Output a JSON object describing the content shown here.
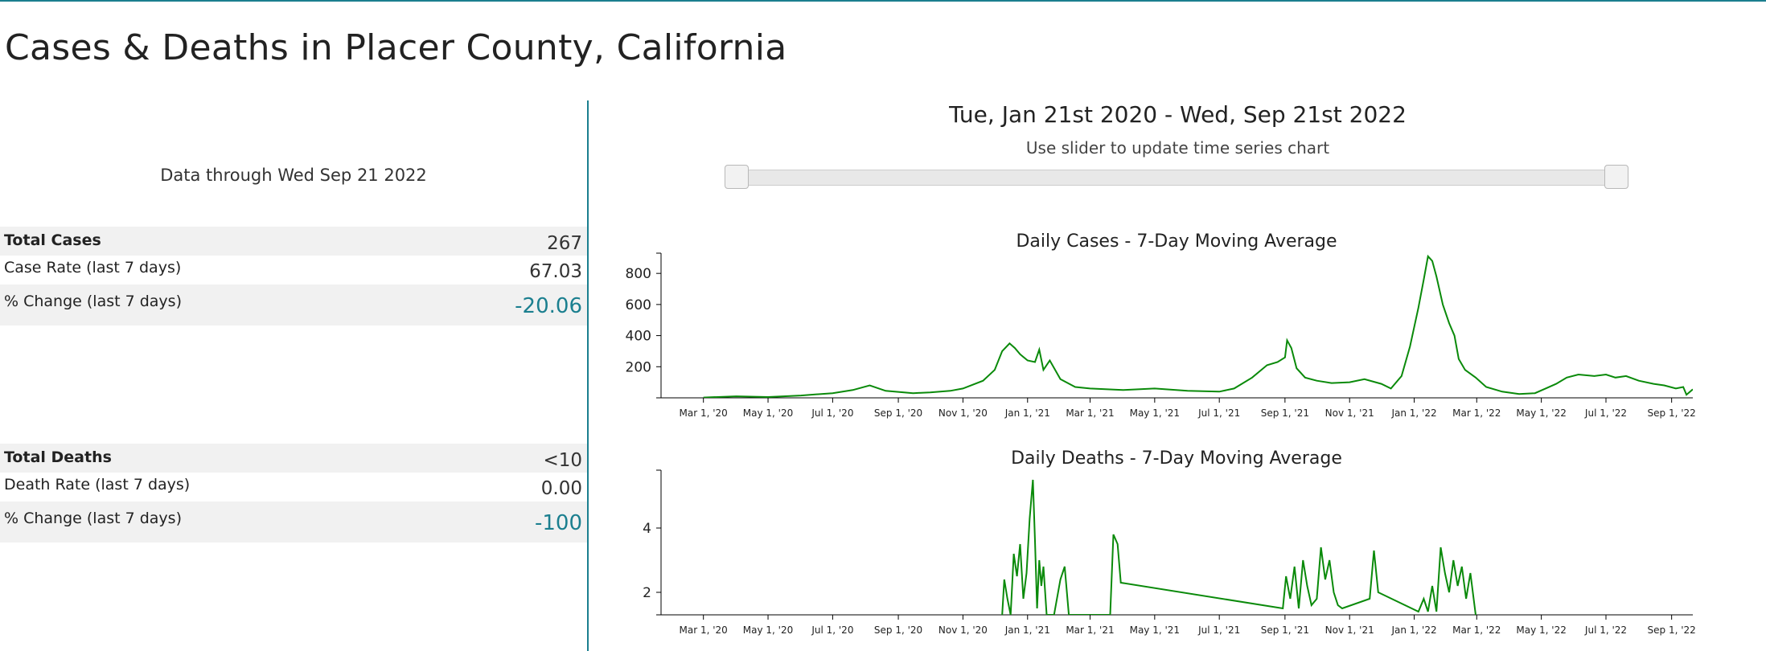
{
  "page": {
    "title": "Cases & Deaths in Placer County, California"
  },
  "summary": {
    "data_through": "Data through Wed Sep 21 2022",
    "cases": {
      "total_label": "Total Cases",
      "total_value": "267",
      "rate_label": "Case Rate (last 7 days)",
      "rate_value": "67.03",
      "change_label": "% Change (last 7 days)",
      "change_value": "-20.06"
    },
    "deaths": {
      "total_label": "Total Deaths",
      "total_value": "<10",
      "rate_label": "Death Rate (last 7 days)",
      "rate_value": "0.00",
      "change_label": "% Change (last 7 days)",
      "change_value": "-100"
    }
  },
  "range": {
    "title": "Tue, Jan 21st 2020 - Wed, Sep 21st 2022",
    "hint": "Use slider to update time series chart",
    "start": "2020-01-21",
    "end": "2022-09-21"
  },
  "colors": {
    "accent": "#1b7f8f",
    "series": "#0a8a0a",
    "shade": "#f1f1f1"
  },
  "chart_data": [
    {
      "type": "line",
      "title": "Daily Cases - 7-Day Moving Average",
      "xlabel": "",
      "ylabel": "",
      "x_ticks": [
        "Mar 1, '20",
        "May 1, '20",
        "Jul 1, '20",
        "Sep 1, '20",
        "Nov 1, '20",
        "Jan 1, '21",
        "Mar 1, '21",
        "May 1, '21",
        "Jul 1, '21",
        "Sep 1, '21",
        "Nov 1, '21",
        "Jan 1, '22",
        "Mar 1, '22",
        "May 1, '22",
        "Jul 1, '22",
        "Sep 1, '22"
      ],
      "y_ticks": [
        "200",
        "400",
        "600",
        "800"
      ],
      "ylim": [
        0,
        930
      ],
      "xlim": [
        "2020-01-21",
        "2022-09-21"
      ],
      "series": [
        {
          "points": [
            [
              "2020-03-01",
              2
            ],
            [
              "2020-04-01",
              10
            ],
            [
              "2020-05-01",
              5
            ],
            [
              "2020-06-01",
              15
            ],
            [
              "2020-07-01",
              30
            ],
            [
              "2020-07-20",
              50
            ],
            [
              "2020-08-05",
              80
            ],
            [
              "2020-08-20",
              45
            ],
            [
              "2020-09-15",
              30
            ],
            [
              "2020-10-01",
              35
            ],
            [
              "2020-10-20",
              45
            ],
            [
              "2020-11-01",
              60
            ],
            [
              "2020-11-20",
              110
            ],
            [
              "2020-12-01",
              180
            ],
            [
              "2020-12-08",
              300
            ],
            [
              "2020-12-15",
              350
            ],
            [
              "2020-12-20",
              320
            ],
            [
              "2020-12-25",
              280
            ],
            [
              "2021-01-01",
              240
            ],
            [
              "2021-01-08",
              230
            ],
            [
              "2021-01-12",
              310
            ],
            [
              "2021-01-16",
              180
            ],
            [
              "2021-01-22",
              240
            ],
            [
              "2021-02-01",
              120
            ],
            [
              "2021-02-15",
              70
            ],
            [
              "2021-03-01",
              60
            ],
            [
              "2021-04-01",
              50
            ],
            [
              "2021-05-01",
              60
            ],
            [
              "2021-06-01",
              45
            ],
            [
              "2021-07-01",
              40
            ],
            [
              "2021-07-15",
              60
            ],
            [
              "2021-08-01",
              130
            ],
            [
              "2021-08-15",
              210
            ],
            [
              "2021-08-25",
              230
            ],
            [
              "2021-09-01",
              260
            ],
            [
              "2021-09-03",
              370
            ],
            [
              "2021-09-07",
              320
            ],
            [
              "2021-09-12",
              190
            ],
            [
              "2021-09-20",
              130
            ],
            [
              "2021-10-01",
              110
            ],
            [
              "2021-10-15",
              95
            ],
            [
              "2021-11-01",
              100
            ],
            [
              "2021-11-15",
              120
            ],
            [
              "2021-12-01",
              90
            ],
            [
              "2021-12-10",
              60
            ],
            [
              "2021-12-20",
              140
            ],
            [
              "2021-12-28",
              330
            ],
            [
              "2022-01-05",
              580
            ],
            [
              "2022-01-10",
              760
            ],
            [
              "2022-01-14",
              910
            ],
            [
              "2022-01-18",
              880
            ],
            [
              "2022-01-22",
              780
            ],
            [
              "2022-01-28",
              600
            ],
            [
              "2022-02-03",
              480
            ],
            [
              "2022-02-08",
              400
            ],
            [
              "2022-02-12",
              250
            ],
            [
              "2022-02-18",
              180
            ],
            [
              "2022-02-28",
              130
            ],
            [
              "2022-03-10",
              70
            ],
            [
              "2022-03-25",
              40
            ],
            [
              "2022-04-10",
              25
            ],
            [
              "2022-04-25",
              30
            ],
            [
              "2022-05-05",
              60
            ],
            [
              "2022-05-15",
              90
            ],
            [
              "2022-05-25",
              130
            ],
            [
              "2022-06-05",
              150
            ],
            [
              "2022-06-20",
              140
            ],
            [
              "2022-07-01",
              150
            ],
            [
              "2022-07-10",
              130
            ],
            [
              "2022-07-20",
              140
            ],
            [
              "2022-08-01",
              110
            ],
            [
              "2022-08-15",
              90
            ],
            [
              "2022-08-25",
              80
            ],
            [
              "2022-09-05",
              60
            ],
            [
              "2022-09-12",
              70
            ],
            [
              "2022-09-15",
              20
            ],
            [
              "2022-09-21",
              55
            ]
          ]
        }
      ]
    },
    {
      "type": "line",
      "title": "Daily Deaths - 7-Day Moving Average",
      "xlabel": "",
      "ylabel": "",
      "x_ticks": [
        "Mar 1, '20",
        "May 1, '20",
        "Jul 1, '20",
        "Sep 1, '20",
        "Nov 1, '20",
        "Jan 1, '21",
        "Mar 1, '21",
        "May 1, '21",
        "Jul 1, '21",
        "Sep 1, '21",
        "Nov 1, '21",
        "Jan 1, '22",
        "Mar 1, '22",
        "May 1, '22",
        "Jul 1, '22",
        "Sep 1, '22"
      ],
      "y_ticks": [
        "2",
        "4"
      ],
      "ylim": [
        1.3,
        5.8
      ],
      "xlim": [
        "2020-01-21",
        "2022-09-21"
      ],
      "series": [
        {
          "points": [
            [
              "2020-12-08",
              1.3
            ],
            [
              "2020-12-10",
              2.4
            ],
            [
              "2020-12-13",
              1.8
            ],
            [
              "2020-12-16",
              1.3
            ],
            [
              "2020-12-19",
              3.2
            ],
            [
              "2020-12-22",
              2.5
            ],
            [
              "2020-12-25",
              3.5
            ],
            [
              "2020-12-28",
              1.8
            ],
            [
              "2020-12-31",
              2.6
            ],
            [
              "2021-01-03",
              4.3
            ],
            [
              "2021-01-06",
              5.5
            ],
            [
              "2021-01-08",
              3.6
            ],
            [
              "2021-01-10",
              1.5
            ],
            [
              "2021-01-12",
              3.0
            ],
            [
              "2021-01-14",
              2.2
            ],
            [
              "2021-01-16",
              2.8
            ],
            [
              "2021-01-19",
              1.3
            ],
            [
              "2021-01-26",
              1.3
            ],
            [
              "2021-02-01",
              2.4
            ],
            [
              "2021-02-05",
              2.8
            ],
            [
              "2021-02-09",
              1.3
            ],
            [
              "2021-03-20",
              1.3
            ],
            [
              "2021-03-23",
              3.8
            ],
            [
              "2021-03-27",
              3.5
            ],
            [
              "2021-03-30",
              2.3
            ],
            [
              "2021-08-30",
              1.5
            ],
            [
              "2021-09-02",
              2.5
            ],
            [
              "2021-09-06",
              1.8
            ],
            [
              "2021-09-10",
              2.8
            ],
            [
              "2021-09-14",
              1.5
            ],
            [
              "2021-09-18",
              3.0
            ],
            [
              "2021-09-22",
              2.2
            ],
            [
              "2021-09-26",
              1.6
            ],
            [
              "2021-10-01",
              1.8
            ],
            [
              "2021-10-05",
              3.4
            ],
            [
              "2021-10-09",
              2.4
            ],
            [
              "2021-10-13",
              3.0
            ],
            [
              "2021-10-17",
              2.0
            ],
            [
              "2021-10-21",
              1.6
            ],
            [
              "2021-10-25",
              1.5
            ],
            [
              "2021-11-20",
              1.8
            ],
            [
              "2021-11-24",
              3.3
            ],
            [
              "2021-11-28",
              2.0
            ],
            [
              "2022-01-05",
              1.4
            ],
            [
              "2022-01-10",
              1.8
            ],
            [
              "2022-01-14",
              1.4
            ],
            [
              "2022-01-18",
              2.2
            ],
            [
              "2022-01-22",
              1.4
            ],
            [
              "2022-01-26",
              3.4
            ],
            [
              "2022-01-30",
              2.6
            ],
            [
              "2022-02-03",
              2.0
            ],
            [
              "2022-02-07",
              3.0
            ],
            [
              "2022-02-11",
              2.2
            ],
            [
              "2022-02-15",
              2.8
            ],
            [
              "2022-02-19",
              1.8
            ],
            [
              "2022-02-23",
              2.6
            ],
            [
              "2022-02-28",
              1.3
            ]
          ]
        }
      ]
    }
  ]
}
